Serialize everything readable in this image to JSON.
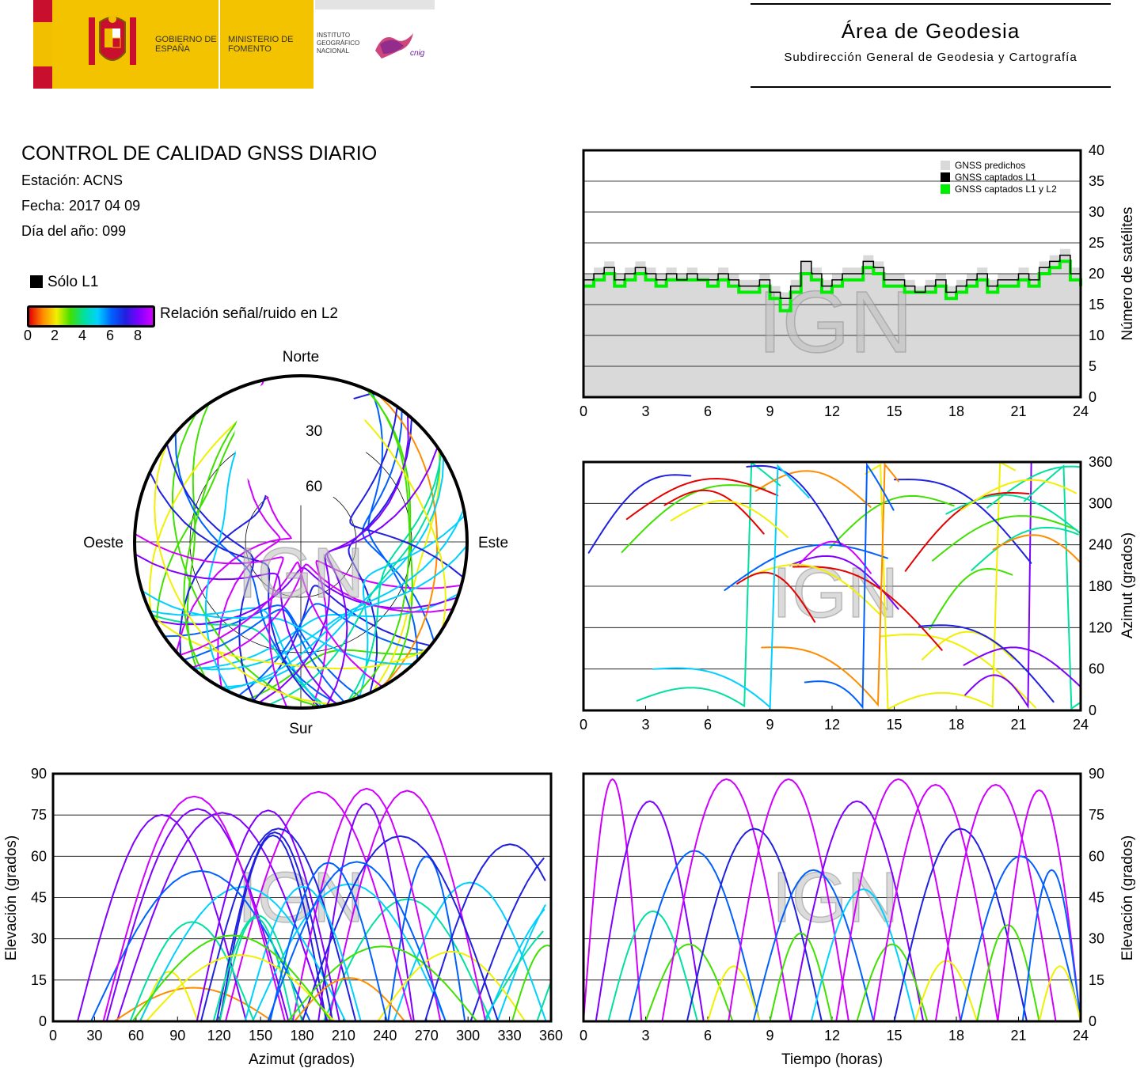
{
  "header": {
    "gov_name": "GOBIERNO DE ESPAÑA",
    "ministry": "MINISTERIO DE FOMENTO",
    "institute": "INSTITUTO GEOGRÁFICO NACIONAL",
    "cnig": "cnig",
    "area_title": "Área de Geodesia",
    "area_subtitle": "Subdirección General de Geodesia y Cartografía"
  },
  "info": {
    "title": "CONTROL DE CALIDAD GNSS DIARIO",
    "station": "Estación: ACNS",
    "date": "Fecha: 2017 04 09",
    "doy": "Día del año: 099",
    "legend_l1": "Sólo L1",
    "legend_snr": "Relación señal/ruido en L2",
    "colorbar_ticks": [
      "0",
      "2",
      "4",
      "6",
      "8"
    ]
  },
  "watermark": "IGN",
  "colors": {
    "predicted": "#d9d9d9",
    "l1": "#000000",
    "l1l2": "#00ee00",
    "snr_scale": [
      "#e50000",
      "#ff8c00",
      "#f0f000",
      "#40e000",
      "#00e0a0",
      "#00d0ff",
      "#0060ff",
      "#2020e0",
      "#8000ff",
      "#d000ff"
    ]
  },
  "chart_data": [
    {
      "id": "sat_count",
      "type": "line",
      "ylabel": "Número de satélites",
      "xlim": [
        0,
        24
      ],
      "ylim": [
        0,
        40
      ],
      "xticks": [
        "0",
        "3",
        "6",
        "9",
        "12",
        "15",
        "18",
        "21",
        "24"
      ],
      "yticks": [
        "0",
        "5",
        "10",
        "15",
        "20",
        "25",
        "30",
        "35",
        "40"
      ],
      "legend": [
        "GNSS predichos",
        "GNSS captados L1",
        "GNSS captados L1 y L2"
      ],
      "legend_position": "top-right",
      "grid": true,
      "x": [
        0,
        0.5,
        1,
        1.5,
        2,
        2.5,
        3,
        3.5,
        4,
        4.5,
        5,
        5.5,
        6,
        6.5,
        7,
        7.5,
        8,
        8.5,
        9,
        9.5,
        10,
        10.5,
        11,
        11.5,
        12,
        12.5,
        13,
        13.5,
        14,
        14.5,
        15,
        15.5,
        16,
        16.5,
        17,
        17.5,
        18,
        18.5,
        19,
        19.5,
        20,
        20.5,
        21,
        21.5,
        22,
        22.5,
        23,
        23.5,
        24
      ],
      "series": [
        {
          "name": "GNSS predichos",
          "values": [
            20,
            21,
            22,
            20,
            21,
            22,
            21,
            20,
            21,
            20,
            21,
            20,
            20,
            21,
            20,
            19,
            19,
            20,
            18,
            17,
            19,
            22,
            21,
            19,
            20,
            21,
            21,
            23,
            22,
            20,
            20,
            19,
            18,
            19,
            20,
            18,
            19,
            20,
            21,
            19,
            20,
            20,
            21,
            20,
            22,
            23,
            24,
            21,
            20
          ]
        },
        {
          "name": "GNSS captados L1",
          "values": [
            19,
            20,
            21,
            19,
            20,
            21,
            20,
            19,
            20,
            19,
            20,
            19,
            19,
            20,
            19,
            18,
            18,
            19,
            17,
            16,
            18,
            22,
            20,
            18,
            19,
            20,
            20,
            22,
            21,
            19,
            19,
            18,
            17,
            18,
            19,
            17,
            18,
            19,
            20,
            18,
            19,
            19,
            20,
            19,
            21,
            22,
            23,
            20,
            19
          ]
        },
        {
          "name": "GNSS captados L1 y L2",
          "values": [
            18,
            19,
            20,
            18,
            19,
            20,
            19,
            18,
            19,
            19,
            19,
            19,
            18,
            19,
            18,
            17,
            17,
            18,
            16,
            14,
            17,
            20,
            19,
            17,
            18,
            19,
            19,
            21,
            20,
            18,
            18,
            17,
            17,
            17,
            18,
            16,
            17,
            18,
            19,
            17,
            18,
            18,
            19,
            18,
            20,
            21,
            22,
            19,
            18
          ]
        }
      ]
    },
    {
      "id": "azimuth_time",
      "type": "scatter",
      "ylabel": "Azimut (grados)",
      "xlim": [
        0,
        24
      ],
      "ylim": [
        0,
        360
      ],
      "xticks": [
        "0",
        "3",
        "6",
        "9",
        "12",
        "15",
        "18",
        "21",
        "24"
      ],
      "yticks": [
        "0",
        "60",
        "120",
        "180",
        "240",
        "300",
        "360"
      ],
      "grid": true
    },
    {
      "id": "elevation_azimuth",
      "type": "scatter",
      "xlabel": "Azimut (grados)",
      "ylabel": "Elevación (grados)",
      "xlim": [
        0,
        360
      ],
      "ylim": [
        0,
        90
      ],
      "xticks": [
        "0",
        "30",
        "60",
        "90",
        "120",
        "150",
        "180",
        "210",
        "240",
        "270",
        "300",
        "330",
        "360"
      ],
      "yticks": [
        "0",
        "15",
        "30",
        "45",
        "60",
        "75",
        "90"
      ],
      "grid": true
    },
    {
      "id": "elevation_time",
      "type": "line",
      "xlabel": "Tiempo (horas)",
      "ylabel": "Elevación (grados)",
      "xlim": [
        0,
        24
      ],
      "ylim": [
        0,
        90
      ],
      "xticks": [
        "0",
        "3",
        "6",
        "9",
        "12",
        "15",
        "18",
        "21",
        "24"
      ],
      "yticks": [
        "0",
        "15",
        "30",
        "45",
        "60",
        "75",
        "90"
      ],
      "grid": true,
      "passes": [
        {
          "rise": 0.0,
          "set": 2.8,
          "max": 88
        },
        {
          "rise": 0.6,
          "set": 5.8,
          "max": 80
        },
        {
          "rise": 1.2,
          "set": 5.5,
          "max": 40
        },
        {
          "rise": 2.2,
          "set": 8.5,
          "max": 62
        },
        {
          "rise": 3.0,
          "set": 7.2,
          "max": 28
        },
        {
          "rise": 3.8,
          "set": 10.0,
          "max": 88
        },
        {
          "rise": 5.0,
          "set": 11.5,
          "max": 70
        },
        {
          "rise": 6.0,
          "set": 8.5,
          "max": 20
        },
        {
          "rise": 7.0,
          "set": 12.8,
          "max": 88
        },
        {
          "rise": 8.2,
          "set": 14.0,
          "max": 55
        },
        {
          "rise": 9.0,
          "set": 12.0,
          "max": 32
        },
        {
          "rise": 10.0,
          "set": 16.4,
          "max": 80
        },
        {
          "rise": 11.0,
          "set": 16.0,
          "max": 48
        },
        {
          "rise": 12.2,
          "set": 18.2,
          "max": 88
        },
        {
          "rise": 13.2,
          "set": 16.6,
          "max": 28
        },
        {
          "rise": 14.0,
          "set": 20.0,
          "max": 86
        },
        {
          "rise": 15.0,
          "set": 21.4,
          "max": 70
        },
        {
          "rise": 16.0,
          "set": 19.0,
          "max": 22
        },
        {
          "rise": 17.0,
          "set": 22.8,
          "max": 86
        },
        {
          "rise": 18.2,
          "set": 24.0,
          "max": 60
        },
        {
          "rise": 19.0,
          "set": 22.0,
          "max": 35
        },
        {
          "rise": 20.0,
          "set": 24.0,
          "max": 84
        },
        {
          "rise": 21.2,
          "set": 24.0,
          "max": 55
        },
        {
          "rise": 22.0,
          "set": 24.0,
          "max": 20
        }
      ]
    },
    {
      "id": "skyplot",
      "type": "scatter",
      "labels": {
        "north": "Norte",
        "south": "Sur",
        "east": "Este",
        "west": "Oeste"
      },
      "rings": [
        "30",
        "60"
      ],
      "grid": true
    }
  ]
}
